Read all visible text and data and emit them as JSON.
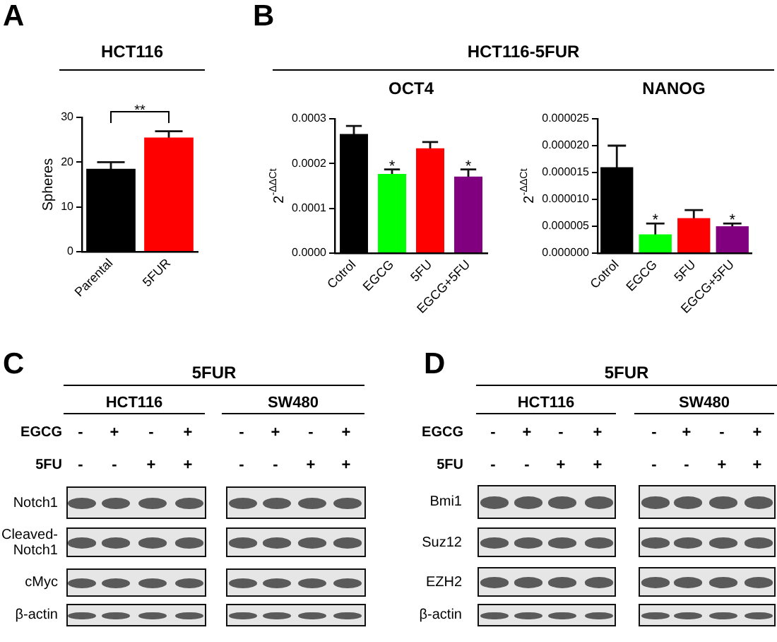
{
  "chart_data": [
    {
      "type": "bar",
      "title": "HCT116",
      "annotations": [
        "A",
        "**"
      ],
      "categories": [
        "Parental",
        "5FUR"
      ],
      "values": [
        18.5,
        25.5
      ],
      "errors": [
        1.5,
        1.4
      ],
      "colors": [
        "#000000",
        "#ff0000"
      ],
      "ylabel": "Spheres",
      "ylim": [
        0,
        30
      ],
      "yticks": [
        0,
        10,
        20,
        30
      ]
    },
    {
      "type": "bar",
      "title": "HCT116-5FUR",
      "subtitle": "OCT4",
      "annotations": [
        "B",
        {
          "text": "*",
          "x": "EGCG",
          "y": 0.000177
        },
        {
          "text": "*",
          "x": "EGCG+5FU",
          "y": 0.000171
        }
      ],
      "categories": [
        "Cotrol",
        "EGCG",
        "5FU",
        "EGCG+5FU"
      ],
      "values": [
        0.000266,
        0.000177,
        0.000234,
        0.000171
      ],
      "errors": [
        1.8e-05,
        1e-05,
        1.4e-05,
        1.6e-05
      ],
      "colors": [
        "#000000",
        "#00ff00",
        "#ff0000",
        "#800080"
      ],
      "ylabel": "2$^{-ΔΔCt}$",
      "ylim": [
        0,
        0.0003
      ],
      "yticks": [
        {
          "value": 0,
          "label": "0.0000"
        },
        {
          "value": 0.0001,
          "label": "0.0001"
        },
        {
          "value": 0.0002,
          "label": "0.0002"
        },
        {
          "value": 0.0003,
          "label": "0.0003"
        }
      ]
    },
    {
      "type": "bar",
      "subtitle": "NANOG",
      "annotations": [
        {
          "text": "*",
          "x": "EGCG",
          "y": 3.5e-06
        },
        {
          "text": "*",
          "x": "EGCG+5FU",
          "y": 5e-06
        }
      ],
      "categories": [
        "Cotrol",
        "EGCG",
        "5FU",
        "EGCG+5FU"
      ],
      "values": [
        1.6e-05,
        3.5e-06,
        6.5e-06,
        5e-06
      ],
      "errors": [
        4e-06,
        2e-06,
        1.5e-06,
        5e-07
      ],
      "colors": [
        "#000000",
        "#00ff00",
        "#ff0000",
        "#800080"
      ],
      "ylabel": "2$^{-ΔΔCt}$",
      "ylim": [
        0,
        2.5e-05
      ],
      "yticks": [
        {
          "value": 0,
          "label": "0.000000"
        },
        {
          "value": 5e-06,
          "label": "0.000005"
        },
        {
          "value": 1e-05,
          "label": "0.000010"
        },
        {
          "value": 1.5e-05,
          "label": "0.000015"
        },
        {
          "value": 2e-05,
          "label": "0.000020"
        },
        {
          "value": 2.5e-05,
          "label": "0.000025"
        }
      ]
    },
    {
      "type": "other",
      "title": "5FUR",
      "annotations": [
        "C",
        "HCT116",
        "SW480",
        "EGCG",
        "-",
        "+",
        "-",
        "+",
        "-",
        "+",
        "-",
        "+",
        "5FU",
        "-",
        "-",
        "+",
        "+",
        "-",
        "-",
        "+",
        "+",
        "Notch1",
        "Cleaved-Notch1",
        "cMyc",
        "β-actin"
      ]
    },
    {
      "type": "other",
      "title": "5FUR",
      "annotations": [
        "D",
        "HCT116",
        "SW480",
        "EGCG",
        "-",
        "+",
        "-",
        "+",
        "-",
        "+",
        "-",
        "+",
        "5FU",
        "-",
        "-",
        "+",
        "+",
        "-",
        "-",
        "+",
        "+",
        "Bmi1",
        "Suz12",
        "EZH2",
        "β-actin"
      ]
    }
  ]
}
